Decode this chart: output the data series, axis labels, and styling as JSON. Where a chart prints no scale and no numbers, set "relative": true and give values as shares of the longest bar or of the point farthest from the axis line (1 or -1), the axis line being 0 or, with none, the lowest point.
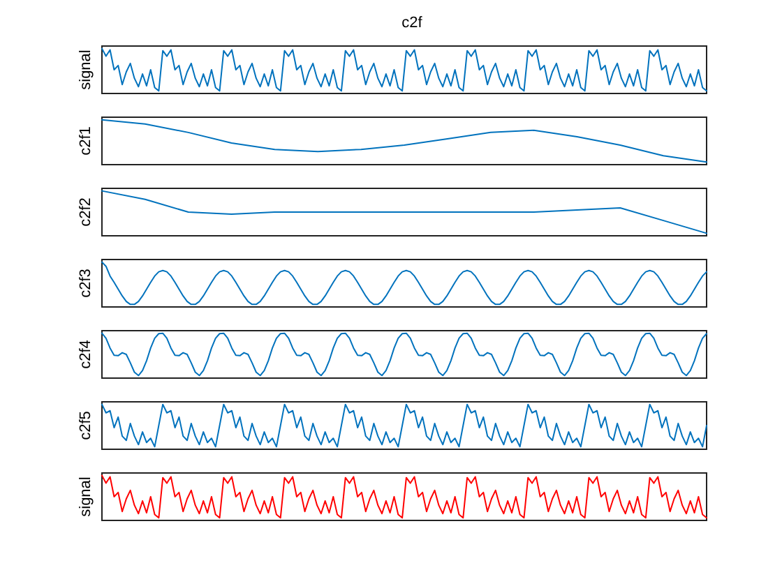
{
  "chart_data": [
    {
      "type": "line",
      "title": "c2f",
      "ylabel": "signal",
      "relative": true,
      "color": "#0072bd",
      "categories": [
        null,
        null,
        null,
        null,
        null,
        null,
        null,
        null,
        null,
        null,
        null,
        null,
        null,
        null,
        null,
        null,
        null,
        null,
        null,
        null,
        null,
        null,
        null,
        null,
        null,
        null,
        null,
        null,
        null,
        null,
        null,
        null,
        null,
        null,
        null,
        null,
        null,
        null,
        null,
        null,
        null,
        null,
        null,
        null,
        null,
        null,
        null,
        null,
        null,
        null,
        null,
        null,
        null,
        null,
        null,
        null,
        null,
        null,
        null,
        null,
        null,
        null,
        null,
        null,
        null,
        null,
        null,
        null,
        null,
        null,
        null,
        null,
        null,
        null,
        null,
        null,
        null,
        null,
        null,
        null,
        null,
        null,
        null,
        null,
        null,
        null,
        null,
        null,
        null,
        null,
        null,
        null,
        null,
        null,
        null,
        null,
        null,
        null,
        null,
        null,
        null,
        null,
        null,
        null,
        null,
        null,
        null,
        null,
        null,
        null,
        null,
        null,
        null,
        null,
        null,
        null,
        null,
        null,
        null,
        null,
        null,
        null,
        null,
        null,
        null,
        null,
        null,
        null,
        null,
        null,
        null,
        null,
        null,
        null,
        null,
        null,
        null,
        null,
        null,
        null,
        null,
        null,
        null,
        null,
        null,
        null,
        null,
        null,
        null,
        null
      ],
      "values": [
        1.0,
        0.82,
        0.97,
        0.5,
        0.6,
        0.15,
        0.45,
        0.65,
        0.3,
        0.1,
        0.4,
        0.12,
        0.5,
        0.08,
        0.0,
        0.95,
        0.82,
        0.97,
        0.5,
        0.6,
        0.15,
        0.45,
        0.65,
        0.3,
        0.1,
        0.4,
        0.12,
        0.5,
        0.08,
        0.0,
        0.95,
        0.82,
        0.97,
        0.5,
        0.6,
        0.15,
        0.45,
        0.65,
        0.3,
        0.1,
        0.4,
        0.12,
        0.5,
        0.08,
        0.0,
        0.95,
        0.82,
        0.97,
        0.5,
        0.6,
        0.15,
        0.45,
        0.65,
        0.3,
        0.1,
        0.4,
        0.12,
        0.5,
        0.08,
        0.0,
        0.95,
        0.82,
        0.97,
        0.5,
        0.6,
        0.15,
        0.45,
        0.65,
        0.3,
        0.1,
        0.4,
        0.12,
        0.5,
        0.08,
        0.0,
        0.95,
        0.82,
        0.97,
        0.5,
        0.6,
        0.15,
        0.45,
        0.65,
        0.3,
        0.1,
        0.4,
        0.12,
        0.5,
        0.08,
        0.0,
        0.95,
        0.82,
        0.97,
        0.5,
        0.6,
        0.15,
        0.45,
        0.65,
        0.3,
        0.1,
        0.4,
        0.12,
        0.5,
        0.08,
        0.0,
        0.95,
        0.82,
        0.97,
        0.5,
        0.6,
        0.15,
        0.45,
        0.65,
        0.3,
        0.1,
        0.4,
        0.12,
        0.5,
        0.08,
        0.0,
        0.95,
        0.82,
        0.97,
        0.5,
        0.6,
        0.15,
        0.45,
        0.65,
        0.3,
        0.1,
        0.4,
        0.12,
        0.5,
        0.08,
        0.0,
        0.95,
        0.82,
        0.97,
        0.5,
        0.6,
        0.15,
        0.45,
        0.65,
        0.3,
        0.1,
        0.4,
        0.12,
        0.5,
        0.08,
        0.0
      ]
    },
    {
      "type": "line",
      "ylabel": "c2f1",
      "relative": true,
      "color": "#0072bd",
      "categories": [
        null,
        null,
        null,
        null,
        null,
        null,
        null,
        null,
        null,
        null,
        null,
        null,
        null,
        null,
        null
      ],
      "values": [
        1.0,
        0.9,
        0.7,
        0.45,
        0.3,
        0.25,
        0.3,
        0.4,
        0.55,
        0.7,
        0.75,
        0.6,
        0.4,
        0.15,
        0.0
      ]
    },
    {
      "type": "line",
      "ylabel": "c2f2",
      "relative": true,
      "color": "#0072bd",
      "categories": [
        null,
        null,
        null,
        null,
        null,
        null,
        null,
        null,
        null,
        null,
        null,
        null,
        null,
        null,
        null
      ],
      "values": [
        1.0,
        0.8,
        0.5,
        0.45,
        0.5,
        0.5,
        0.5,
        0.5,
        0.5,
        0.5,
        0.5,
        0.55,
        0.6,
        0.3,
        0.0
      ]
    },
    {
      "type": "line",
      "ylabel": "c2f3",
      "relative": true,
      "color": "#0072bd",
      "categories": [
        null,
        null,
        null,
        null,
        null,
        null,
        null,
        null,
        null,
        null,
        null,
        null,
        null,
        null,
        null,
        null,
        null,
        null,
        null,
        null,
        null,
        null,
        null,
        null,
        null,
        null,
        null,
        null,
        null,
        null,
        null,
        null,
        null,
        null,
        null,
        null,
        null,
        null,
        null,
        null,
        null,
        null,
        null,
        null,
        null,
        null,
        null,
        null,
        null,
        null,
        null,
        null,
        null,
        null,
        null,
        null,
        null,
        null,
        null,
        null,
        null,
        null,
        null,
        null,
        null,
        null,
        null,
        null,
        null,
        null,
        null,
        null,
        null,
        null,
        null,
        null,
        null,
        null,
        null,
        null,
        null,
        null,
        null,
        null,
        null,
        null,
        null,
        null,
        null,
        null,
        null,
        null,
        null,
        null,
        null,
        null,
        null,
        null,
        null,
        null,
        null,
        null,
        null,
        null,
        null,
        null,
        null,
        null,
        null,
        null,
        null,
        null,
        null,
        null,
        null,
        null,
        null,
        null,
        null,
        null,
        null,
        null,
        null,
        null,
        null,
        null,
        null,
        null,
        null,
        null,
        null,
        null,
        null,
        null,
        null,
        null,
        null,
        null,
        null,
        null,
        null,
        null,
        null,
        null,
        null,
        null,
        null,
        null,
        null,
        null
      ],
      "values": [
        1.0,
        0.9,
        0.67,
        0.52,
        0.36,
        0.2,
        0.07,
        0.0,
        0.0,
        0.07,
        0.2,
        0.36,
        0.52,
        0.67,
        0.77,
        0.8,
        0.77,
        0.67,
        0.52,
        0.36,
        0.2,
        0.07,
        0.0,
        0.0,
        0.07,
        0.2,
        0.36,
        0.52,
        0.67,
        0.77,
        0.8,
        0.77,
        0.67,
        0.52,
        0.36,
        0.2,
        0.07,
        0.0,
        0.0,
        0.07,
        0.2,
        0.36,
        0.52,
        0.67,
        0.77,
        0.8,
        0.77,
        0.67,
        0.52,
        0.36,
        0.2,
        0.07,
        0.0,
        0.0,
        0.07,
        0.2,
        0.36,
        0.52,
        0.67,
        0.77,
        0.8,
        0.77,
        0.67,
        0.52,
        0.36,
        0.2,
        0.07,
        0.0,
        0.0,
        0.07,
        0.2,
        0.36,
        0.52,
        0.67,
        0.77,
        0.8,
        0.77,
        0.67,
        0.52,
        0.36,
        0.2,
        0.07,
        0.0,
        0.0,
        0.07,
        0.2,
        0.36,
        0.52,
        0.67,
        0.77,
        0.8,
        0.77,
        0.67,
        0.52,
        0.36,
        0.2,
        0.07,
        0.0,
        0.0,
        0.07,
        0.2,
        0.36,
        0.52,
        0.67,
        0.77,
        0.8,
        0.77,
        0.67,
        0.52,
        0.36,
        0.2,
        0.07,
        0.0,
        0.0,
        0.07,
        0.2,
        0.36,
        0.52,
        0.67,
        0.77,
        0.8,
        0.77,
        0.67,
        0.52,
        0.36,
        0.2,
        0.07,
        0.0,
        0.0,
        0.07,
        0.2,
        0.36,
        0.52,
        0.67,
        0.77,
        0.8,
        0.77,
        0.67,
        0.52,
        0.36,
        0.2,
        0.07,
        0.0,
        0.0,
        0.07,
        0.2,
        0.36,
        0.52,
        0.67,
        0.77
      ]
    },
    {
      "type": "line",
      "ylabel": "c2f4",
      "relative": true,
      "color": "#0072bd",
      "categories": [
        null,
        null,
        null,
        null,
        null,
        null,
        null,
        null,
        null,
        null,
        null,
        null,
        null,
        null,
        null,
        null,
        null,
        null,
        null,
        null,
        null,
        null,
        null,
        null,
        null,
        null,
        null,
        null,
        null,
        null,
        null,
        null,
        null,
        null,
        null,
        null,
        null,
        null,
        null,
        null,
        null,
        null,
        null,
        null,
        null,
        null,
        null,
        null,
        null,
        null,
        null,
        null,
        null,
        null,
        null,
        null,
        null,
        null,
        null,
        null,
        null,
        null,
        null,
        null,
        null,
        null,
        null,
        null,
        null,
        null,
        null,
        null,
        null,
        null,
        null,
        null,
        null,
        null,
        null,
        null,
        null,
        null,
        null,
        null,
        null,
        null,
        null,
        null,
        null,
        null,
        null,
        null,
        null,
        null,
        null,
        null,
        null,
        null,
        null,
        null,
        null,
        null,
        null,
        null,
        null,
        null,
        null,
        null,
        null,
        null,
        null,
        null,
        null,
        null,
        null,
        null,
        null,
        null,
        null,
        null,
        null,
        null,
        null,
        null,
        null,
        null,
        null,
        null,
        null,
        null,
        null,
        null,
        null,
        null,
        null,
        null,
        null,
        null,
        null,
        null,
        null,
        null,
        null,
        null,
        null,
        null,
        null,
        null,
        null,
        null
      ],
      "values": [
        1.0,
        0.88,
        0.65,
        0.48,
        0.47,
        0.54,
        0.5,
        0.3,
        0.08,
        0.0,
        0.12,
        0.35,
        0.65,
        0.88,
        0.99,
        1.0,
        0.88,
        0.65,
        0.48,
        0.47,
        0.54,
        0.5,
        0.3,
        0.08,
        0.0,
        0.12,
        0.35,
        0.65,
        0.88,
        0.99,
        1.0,
        0.88,
        0.65,
        0.48,
        0.47,
        0.54,
        0.5,
        0.3,
        0.08,
        0.0,
        0.12,
        0.35,
        0.65,
        0.88,
        0.99,
        1.0,
        0.88,
        0.65,
        0.48,
        0.47,
        0.54,
        0.5,
        0.3,
        0.08,
        0.0,
        0.12,
        0.35,
        0.65,
        0.88,
        0.99,
        1.0,
        0.88,
        0.65,
        0.48,
        0.47,
        0.54,
        0.5,
        0.3,
        0.08,
        0.0,
        0.12,
        0.35,
        0.65,
        0.88,
        0.99,
        1.0,
        0.88,
        0.65,
        0.48,
        0.47,
        0.54,
        0.5,
        0.3,
        0.08,
        0.0,
        0.12,
        0.35,
        0.65,
        0.88,
        0.99,
        1.0,
        0.88,
        0.65,
        0.48,
        0.47,
        0.54,
        0.5,
        0.3,
        0.08,
        0.0,
        0.12,
        0.35,
        0.65,
        0.88,
        0.99,
        1.0,
        0.88,
        0.65,
        0.48,
        0.47,
        0.54,
        0.5,
        0.3,
        0.08,
        0.0,
        0.12,
        0.35,
        0.65,
        0.88,
        0.99,
        1.0,
        0.88,
        0.65,
        0.48,
        0.47,
        0.54,
        0.5,
        0.3,
        0.08,
        0.0,
        0.12,
        0.35,
        0.65,
        0.88,
        0.99,
        1.0,
        0.88,
        0.65,
        0.48,
        0.47,
        0.54,
        0.5,
        0.3,
        0.08,
        0.0,
        0.12,
        0.35,
        0.65,
        0.88,
        0.99
      ]
    },
    {
      "type": "line",
      "ylabel": "c2f5",
      "relative": true,
      "color": "#0072bd",
      "categories": [
        null,
        null,
        null,
        null,
        null,
        null,
        null,
        null,
        null,
        null,
        null,
        null,
        null,
        null,
        null,
        null,
        null,
        null,
        null,
        null,
        null,
        null,
        null,
        null,
        null,
        null,
        null,
        null,
        null,
        null,
        null,
        null,
        null,
        null,
        null,
        null,
        null,
        null,
        null,
        null,
        null,
        null,
        null,
        null,
        null,
        null,
        null,
        null,
        null,
        null,
        null,
        null,
        null,
        null,
        null,
        null,
        null,
        null,
        null,
        null,
        null,
        null,
        null,
        null,
        null,
        null,
        null,
        null,
        null,
        null,
        null,
        null,
        null,
        null,
        null,
        null,
        null,
        null,
        null,
        null,
        null,
        null,
        null,
        null,
        null,
        null,
        null,
        null,
        null,
        null,
        null,
        null,
        null,
        null,
        null,
        null,
        null,
        null,
        null,
        null,
        null,
        null,
        null,
        null,
        null,
        null,
        null,
        null,
        null,
        null,
        null,
        null,
        null,
        null,
        null,
        null,
        null,
        null,
        null,
        null,
        null,
        null,
        null,
        null,
        null,
        null,
        null,
        null,
        null,
        null,
        null,
        null,
        null,
        null,
        null,
        null,
        null,
        null,
        null,
        null,
        null,
        null,
        null,
        null,
        null,
        null,
        null,
        null,
        null,
        null
      ],
      "values": [
        1.0,
        0.8,
        0.85,
        0.45,
        0.7,
        0.25,
        0.15,
        0.55,
        0.25,
        0.05,
        0.35,
        0.1,
        0.2,
        0.0,
        0.5,
        1.0,
        0.8,
        0.85,
        0.45,
        0.7,
        0.25,
        0.15,
        0.55,
        0.25,
        0.05,
        0.35,
        0.1,
        0.2,
        0.0,
        0.5,
        1.0,
        0.8,
        0.85,
        0.45,
        0.7,
        0.25,
        0.15,
        0.55,
        0.25,
        0.05,
        0.35,
        0.1,
        0.2,
        0.0,
        0.5,
        1.0,
        0.8,
        0.85,
        0.45,
        0.7,
        0.25,
        0.15,
        0.55,
        0.25,
        0.05,
        0.35,
        0.1,
        0.2,
        0.0,
        0.5,
        1.0,
        0.8,
        0.85,
        0.45,
        0.7,
        0.25,
        0.15,
        0.55,
        0.25,
        0.05,
        0.35,
        0.1,
        0.2,
        0.0,
        0.5,
        1.0,
        0.8,
        0.85,
        0.45,
        0.7,
        0.25,
        0.15,
        0.55,
        0.25,
        0.05,
        0.35,
        0.1,
        0.2,
        0.0,
        0.5,
        1.0,
        0.8,
        0.85,
        0.45,
        0.7,
        0.25,
        0.15,
        0.55,
        0.25,
        0.05,
        0.35,
        0.1,
        0.2,
        0.0,
        0.5,
        1.0,
        0.8,
        0.85,
        0.45,
        0.7,
        0.25,
        0.15,
        0.55,
        0.25,
        0.05,
        0.35,
        0.1,
        0.2,
        0.0,
        0.5,
        1.0,
        0.8,
        0.85,
        0.45,
        0.7,
        0.25,
        0.15,
        0.55,
        0.25,
        0.05,
        0.35,
        0.1,
        0.2,
        0.0,
        0.5,
        1.0,
        0.8,
        0.85,
        0.45,
        0.7,
        0.25,
        0.15,
        0.55,
        0.25,
        0.05,
        0.35,
        0.1,
        0.2,
        0.0,
        0.5
      ]
    },
    {
      "type": "line",
      "ylabel": "signal",
      "relative": true,
      "color": "#ff0000",
      "categories": [
        null,
        null,
        null,
        null,
        null,
        null,
        null,
        null,
        null,
        null,
        null,
        null,
        null,
        null,
        null,
        null,
        null,
        null,
        null,
        null,
        null,
        null,
        null,
        null,
        null,
        null,
        null,
        null,
        null,
        null,
        null,
        null,
        null,
        null,
        null,
        null,
        null,
        null,
        null,
        null,
        null,
        null,
        null,
        null,
        null,
        null,
        null,
        null,
        null,
        null,
        null,
        null,
        null,
        null,
        null,
        null,
        null,
        null,
        null,
        null,
        null,
        null,
        null,
        null,
        null,
        null,
        null,
        null,
        null,
        null,
        null,
        null,
        null,
        null,
        null,
        null,
        null,
        null,
        null,
        null,
        null,
        null,
        null,
        null,
        null,
        null,
        null,
        null,
        null,
        null,
        null,
        null,
        null,
        null,
        null,
        null,
        null,
        null,
        null,
        null,
        null,
        null,
        null,
        null,
        null,
        null,
        null,
        null,
        null,
        null,
        null,
        null,
        null,
        null,
        null,
        null,
        null,
        null,
        null,
        null,
        null,
        null,
        null,
        null,
        null,
        null,
        null,
        null,
        null,
        null,
        null,
        null,
        null,
        null,
        null,
        null,
        null,
        null,
        null,
        null,
        null,
        null,
        null,
        null,
        null,
        null,
        null,
        null,
        null,
        null
      ],
      "values": [
        1.0,
        0.82,
        0.97,
        0.5,
        0.6,
        0.15,
        0.45,
        0.65,
        0.3,
        0.1,
        0.4,
        0.12,
        0.5,
        0.08,
        0.0,
        0.95,
        0.82,
        0.97,
        0.5,
        0.6,
        0.15,
        0.45,
        0.65,
        0.3,
        0.1,
        0.4,
        0.12,
        0.5,
        0.08,
        0.0,
        0.95,
        0.82,
        0.97,
        0.5,
        0.6,
        0.15,
        0.45,
        0.65,
        0.3,
        0.1,
        0.4,
        0.12,
        0.5,
        0.08,
        0.0,
        0.95,
        0.82,
        0.97,
        0.5,
        0.6,
        0.15,
        0.45,
        0.65,
        0.3,
        0.1,
        0.4,
        0.12,
        0.5,
        0.08,
        0.0,
        0.95,
        0.82,
        0.97,
        0.5,
        0.6,
        0.15,
        0.45,
        0.65,
        0.3,
        0.1,
        0.4,
        0.12,
        0.5,
        0.08,
        0.0,
        0.95,
        0.82,
        0.97,
        0.5,
        0.6,
        0.15,
        0.45,
        0.65,
        0.3,
        0.1,
        0.4,
        0.12,
        0.5,
        0.08,
        0.0,
        0.95,
        0.82,
        0.97,
        0.5,
        0.6,
        0.15,
        0.45,
        0.65,
        0.3,
        0.1,
        0.4,
        0.12,
        0.5,
        0.08,
        0.0,
        0.95,
        0.82,
        0.97,
        0.5,
        0.6,
        0.15,
        0.45,
        0.65,
        0.3,
        0.1,
        0.4,
        0.12,
        0.5,
        0.08,
        0.0,
        0.95,
        0.82,
        0.97,
        0.5,
        0.6,
        0.15,
        0.45,
        0.65,
        0.3,
        0.1,
        0.4,
        0.12,
        0.5,
        0.08,
        0.0,
        0.95,
        0.82,
        0.97,
        0.5,
        0.6,
        0.15,
        0.45,
        0.65,
        0.3,
        0.1,
        0.4,
        0.12,
        0.5,
        0.08,
        0.0
      ]
    }
  ]
}
